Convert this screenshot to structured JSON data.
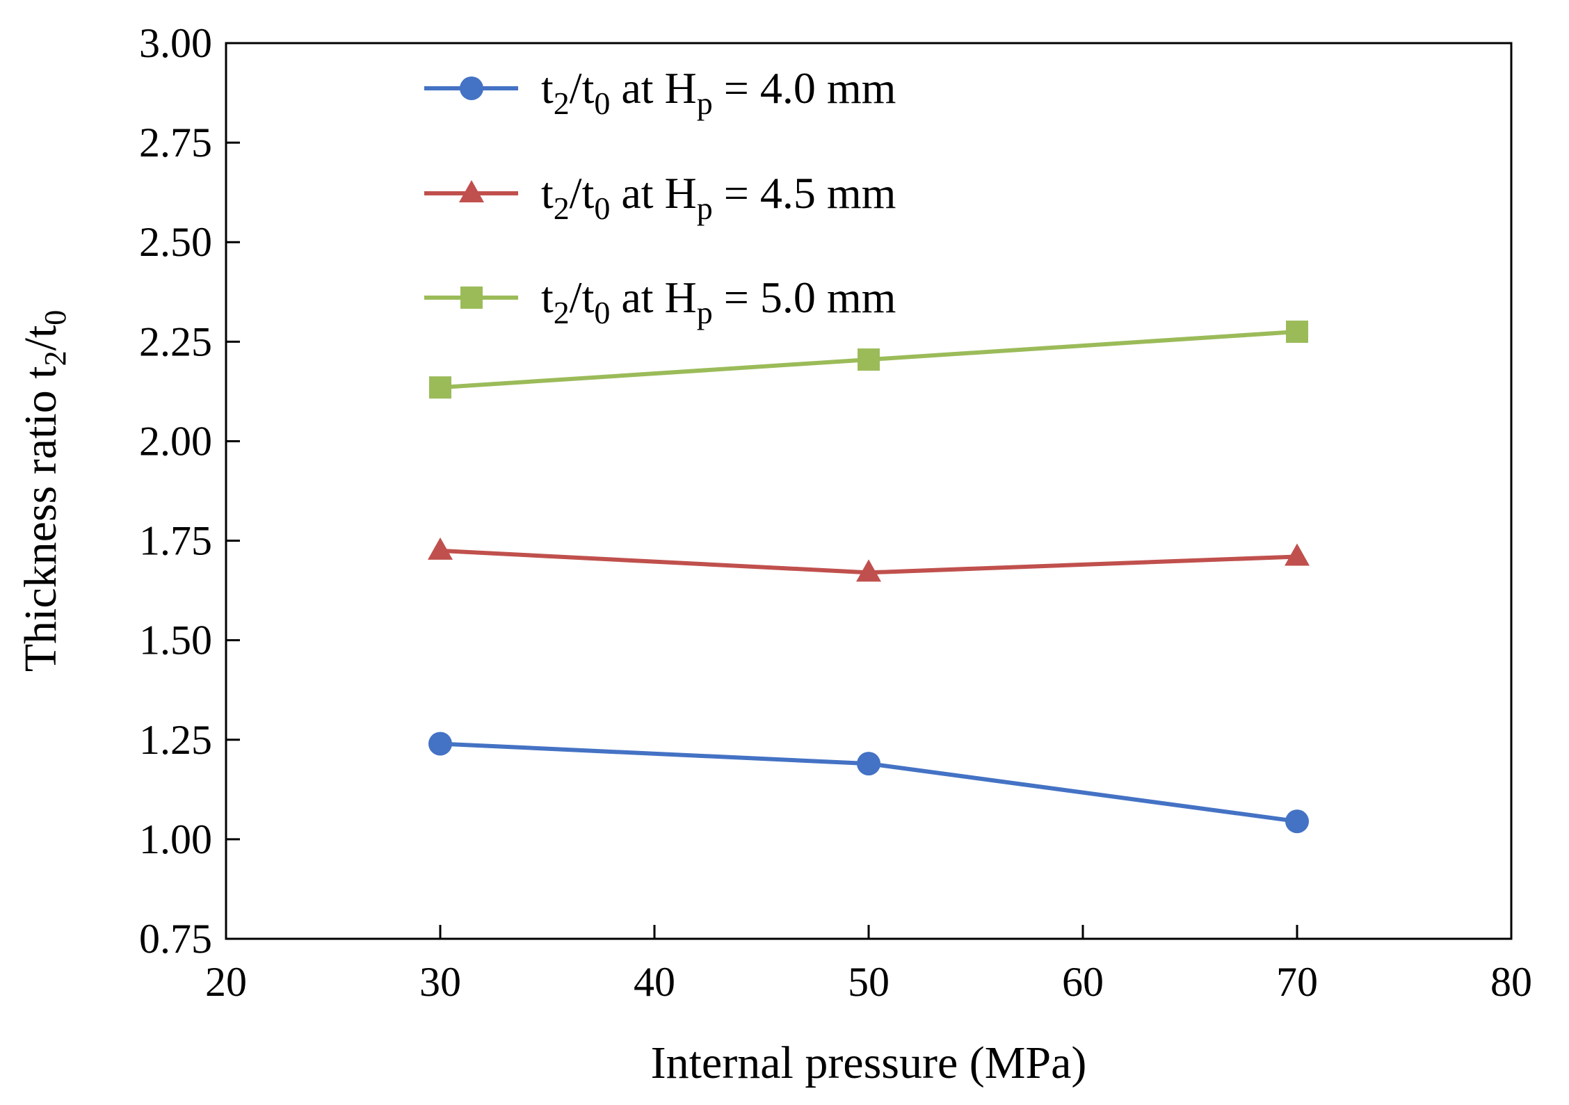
{
  "chart_data": {
    "type": "line",
    "xlabel": "Internal pressure (MPa)",
    "ylabel": {
      "main": "Thickness ratio t",
      "sub1": "2",
      "mid": "/t",
      "sub2": "0"
    },
    "xlim": [
      20,
      80
    ],
    "ylim": [
      0.75,
      3.0
    ],
    "x_ticks": [
      "20",
      "30",
      "40",
      "50",
      "60",
      "70",
      "80"
    ],
    "y_ticks": [
      "0.75",
      "1.00",
      "1.25",
      "1.50",
      "1.75",
      "2.00",
      "2.25",
      "2.50",
      "2.75",
      "3.00"
    ],
    "grid": false,
    "legend_position": "top-left",
    "series": [
      {
        "legend": {
          "t": "t",
          "sub2": "2",
          "slash": "/t",
          "sub0": "0",
          "at": " at H",
          "subp": "p",
          "rest": " = 4.0 mm"
        },
        "color": "#4472c4",
        "marker": "circle",
        "x": [
          30,
          50,
          70
        ],
        "y": [
          1.24,
          1.19,
          1.045
        ]
      },
      {
        "legend": {
          "t": "t",
          "sub2": "2",
          "slash": "/t",
          "sub0": "0",
          "at": " at H",
          "subp": "p",
          "rest": " = 4.5 mm"
        },
        "color": "#c0504d",
        "marker": "triangle",
        "x": [
          30,
          50,
          70
        ],
        "y": [
          1.725,
          1.67,
          1.71
        ]
      },
      {
        "legend": {
          "t": "t",
          "sub2": "2",
          "slash": "/t",
          "sub0": "0",
          "at": " at H",
          "subp": "p",
          "rest": " = 5.0 mm"
        },
        "color": "#9bbb59",
        "marker": "square",
        "x": [
          30,
          50,
          70
        ],
        "y": [
          2.135,
          2.205,
          2.275
        ]
      }
    ]
  }
}
